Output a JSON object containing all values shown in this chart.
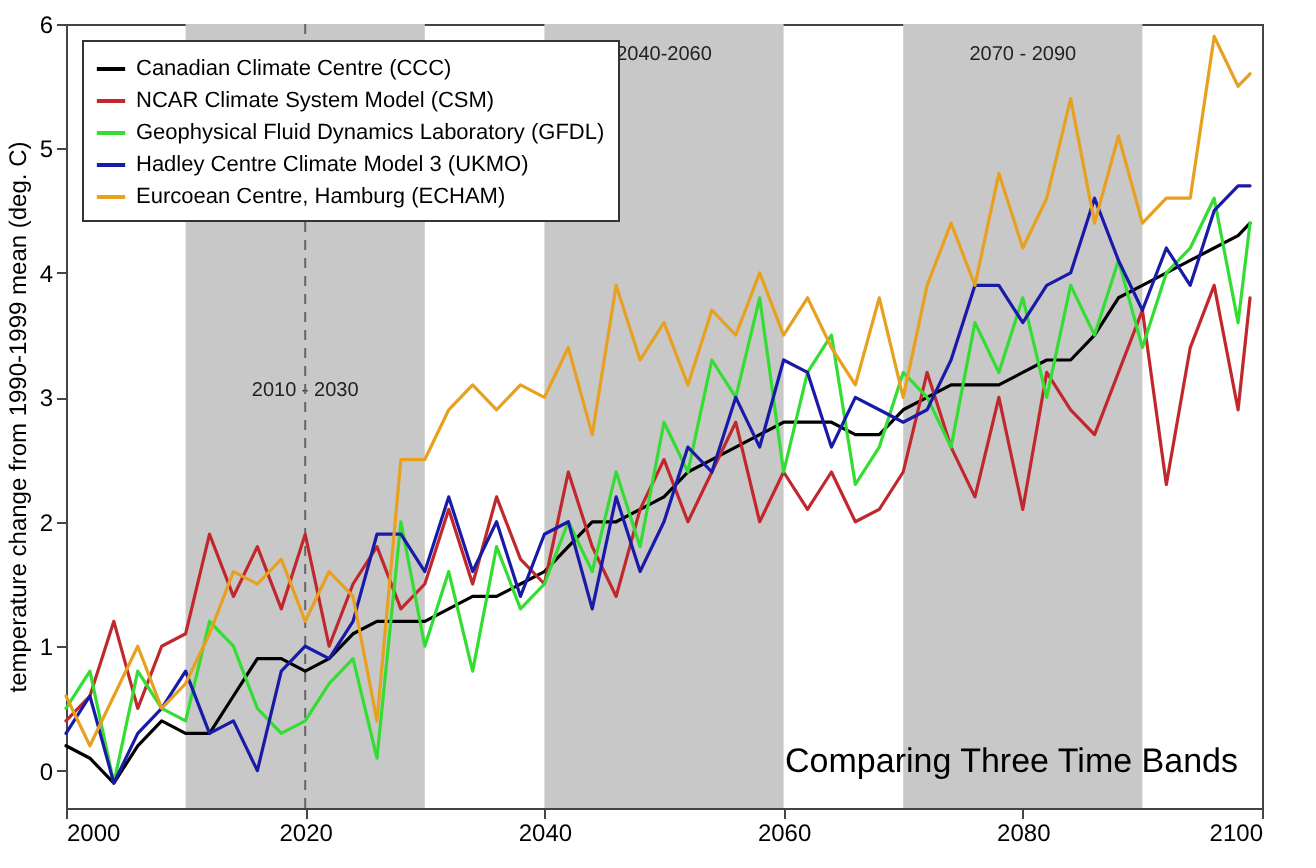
{
  "chart_data": {
    "type": "line",
    "ylabel": "temperature change from 1990-1999 mean (deg. C)",
    "x": [
      2000,
      2002,
      2004,
      2006,
      2008,
      2010,
      2012,
      2014,
      2016,
      2018,
      2020,
      2022,
      2024,
      2026,
      2028,
      2030,
      2032,
      2034,
      2036,
      2038,
      2040,
      2042,
      2044,
      2046,
      2048,
      2050,
      2052,
      2054,
      2056,
      2058,
      2060,
      2062,
      2064,
      2066,
      2068,
      2070,
      2072,
      2074,
      2076,
      2078,
      2080,
      2082,
      2084,
      2086,
      2088,
      2090,
      2092,
      2094,
      2096,
      2098,
      2099
    ],
    "series": [
      {
        "name": "Canadian Climate Centre (CCC)",
        "color": "#000000",
        "values": [
          0.2,
          0.1,
          -0.1,
          0.2,
          0.4,
          0.3,
          0.3,
          0.6,
          0.9,
          0.9,
          0.8,
          0.9,
          1.1,
          1.2,
          1.2,
          1.2,
          1.3,
          1.4,
          1.4,
          1.5,
          1.6,
          1.8,
          2.0,
          2.0,
          2.1,
          2.2,
          2.4,
          2.5,
          2.6,
          2.7,
          2.8,
          2.8,
          2.8,
          2.7,
          2.7,
          2.9,
          3.0,
          3.1,
          3.1,
          3.1,
          3.2,
          3.3,
          3.3,
          3.5,
          3.8,
          3.9,
          4.0,
          4.1,
          4.2,
          4.3,
          4.4
        ]
      },
      {
        "name": "NCAR Climate System Model (CSM)",
        "color": "#c0282d",
        "values": [
          0.4,
          0.6,
          1.2,
          0.5,
          1.0,
          1.1,
          1.9,
          1.4,
          1.8,
          1.3,
          1.9,
          1.0,
          1.5,
          1.8,
          1.3,
          1.5,
          2.1,
          1.5,
          2.2,
          1.7,
          1.5,
          2.4,
          1.8,
          1.4,
          2.1,
          2.5,
          2.0,
          2.4,
          2.8,
          2.0,
          2.4,
          2.1,
          2.4,
          2.0,
          2.1,
          2.4,
          3.2,
          2.6,
          2.2,
          3.0,
          2.1,
          3.2,
          2.9,
          2.7,
          3.2,
          3.7,
          2.3,
          3.4,
          3.9,
          2.9,
          3.8
        ]
      },
      {
        "name": "Geophysical Fluid Dynamics Laboratory (GFDL)",
        "color": "#33dd33",
        "values": [
          0.5,
          0.8,
          -0.1,
          0.8,
          0.5,
          0.4,
          1.2,
          1.0,
          0.5,
          0.3,
          0.4,
          0.7,
          0.9,
          0.1,
          2.0,
          1.0,
          1.6,
          0.8,
          1.8,
          1.3,
          1.5,
          2.0,
          1.6,
          2.4,
          1.8,
          2.8,
          2.4,
          3.3,
          3.0,
          3.8,
          2.4,
          3.2,
          3.5,
          2.3,
          2.6,
          3.2,
          3.0,
          2.6,
          3.6,
          3.2,
          3.8,
          3.0,
          3.9,
          3.5,
          4.1,
          3.4,
          4.0,
          4.2,
          4.6,
          3.6,
          4.4
        ]
      },
      {
        "name": "Hadley Centre Climate Model 3 (UKMO)",
        "color": "#1a1aa8",
        "values": [
          0.3,
          0.6,
          -0.1,
          0.3,
          0.5,
          0.8,
          0.3,
          0.4,
          0.0,
          0.8,
          1.0,
          0.9,
          1.2,
          1.9,
          1.9,
          1.6,
          2.2,
          1.6,
          2.0,
          1.4,
          1.9,
          2.0,
          1.3,
          2.2,
          1.6,
          2.0,
          2.6,
          2.4,
          3.0,
          2.6,
          3.3,
          3.2,
          2.6,
          3.0,
          2.9,
          2.8,
          2.9,
          3.3,
          3.9,
          3.9,
          3.6,
          3.9,
          4.0,
          4.6,
          4.1,
          3.7,
          4.2,
          3.9,
          4.5,
          4.7,
          4.7
        ]
      },
      {
        "name": "Eurcoean Centre, Hamburg (ECHAM)",
        "color": "#e8a020",
        "values": [
          0.6,
          0.2,
          0.6,
          1.0,
          0.5,
          0.7,
          1.1,
          1.6,
          1.5,
          1.7,
          1.2,
          1.6,
          1.4,
          0.4,
          2.5,
          2.5,
          2.9,
          3.1,
          2.9,
          3.1,
          3.0,
          3.4,
          2.7,
          3.9,
          3.3,
          3.6,
          3.1,
          3.7,
          3.5,
          4.0,
          3.5,
          3.8,
          3.4,
          3.1,
          3.8,
          3.0,
          3.9,
          4.4,
          3.9,
          4.8,
          4.2,
          4.6,
          5.4,
          4.4,
          5.1,
          4.4,
          4.6,
          4.6,
          5.9,
          5.5,
          5.6
        ]
      }
    ],
    "xlim": [
      2000,
      2100
    ],
    "xticks": [
      2000,
      2020,
      2040,
      2060,
      2080,
      2100
    ],
    "ylim": [
      -0.3,
      6
    ],
    "yticks": [
      0,
      1,
      2,
      3,
      4,
      5,
      6
    ],
    "bands": [
      {
        "axis": "x",
        "from": 2010,
        "to": 2030,
        "label": "2010 - 2030",
        "color": "#c8c8c8"
      },
      {
        "axis": "x",
        "from": 2040,
        "to": 2060,
        "label": "2040-2060",
        "color": "#c8c8c8"
      },
      {
        "axis": "x",
        "from": 2070,
        "to": 2090,
        "label": "2070 - 2090",
        "color": "#c8c8c8"
      }
    ],
    "ref_lines": [
      {
        "axis": "x",
        "value": 2020,
        "line_style": "dashed",
        "color": "#666666"
      }
    ],
    "annotations": [
      "Comparing Three Time Bands"
    ],
    "legend": "top left"
  }
}
